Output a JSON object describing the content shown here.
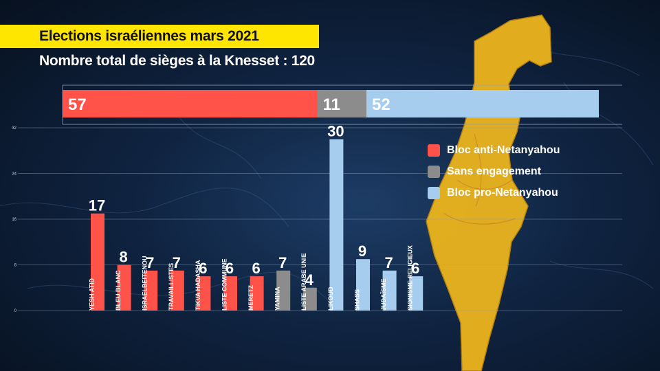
{
  "title": "Elections israéliennes mars 2021",
  "subtitle": "Nombre total de sièges à la Knesset : 120",
  "colors": {
    "anti": "#ff5249",
    "neutral": "#8c8c8c",
    "pro": "#a6cdee",
    "banner": "#ffe600",
    "map": "#e8b21f"
  },
  "chart_data": [
    {
      "type": "bar",
      "orientation": "horizontal-stacked",
      "series": [
        {
          "name": "Bloc anti-Netanyahou",
          "values": [
            57
          ]
        },
        {
          "name": "Sans engagement",
          "values": [
            11
          ]
        },
        {
          "name": "Bloc pro-Netanyahou",
          "values": [
            52
          ]
        }
      ],
      "xlim": [
        0,
        120
      ]
    },
    {
      "type": "bar",
      "categories": [
        "YESH ATID",
        "BLEU BLANC",
        "ISRAELBEITENOU",
        "TRAVAILLISTES",
        "TIKVA HADASHA",
        "LISTE COMMUNE",
        "MERETZ",
        "YAMINA",
        "LISTE ARABE UNIE",
        "LIKOUD",
        "SHASS",
        "JUDAÏSME",
        "SIONISME RELIGIEUX"
      ],
      "values": [
        17,
        8,
        7,
        7,
        6,
        6,
        6,
        7,
        4,
        30,
        9,
        7,
        6
      ],
      "blocs": [
        "anti",
        "anti",
        "anti",
        "anti",
        "anti",
        "anti",
        "anti",
        "neutral",
        "neutral",
        "pro",
        "pro",
        "pro",
        "pro"
      ],
      "yticks": [
        "0",
        "8",
        "16",
        "24",
        "32"
      ],
      "ylim": [
        0,
        32
      ],
      "grid": true,
      "legend": [
        {
          "label": "Bloc anti-Netanyahou",
          "bloc": "anti"
        },
        {
          "label": "Sans engagement",
          "bloc": "neutral"
        },
        {
          "label": "Bloc pro-Netanyahou",
          "bloc": "pro"
        }
      ],
      "legend_position": "right"
    }
  ]
}
